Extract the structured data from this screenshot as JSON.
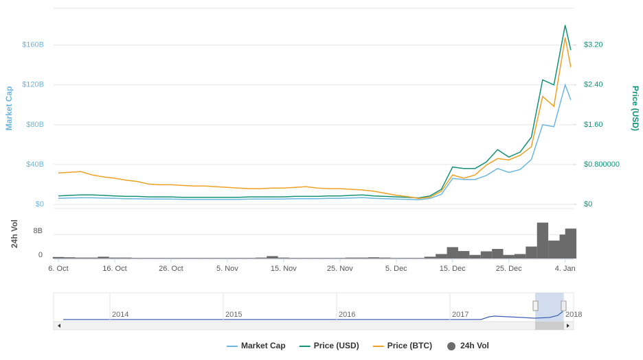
{
  "chart_data": {
    "type": "line",
    "x": [
      0,
      2,
      4,
      6,
      8,
      10,
      12,
      14,
      16,
      18,
      20,
      22,
      24,
      26,
      28,
      30,
      32,
      34,
      36,
      38,
      40,
      42,
      44,
      46,
      48,
      50,
      52,
      54,
      56,
      58,
      60,
      62,
      64,
      66,
      68,
      70,
      72,
      74,
      76,
      78,
      80,
      82,
      84,
      86,
      88,
      90,
      91
    ],
    "xlim": [
      -0.85,
      91.5
    ],
    "xticks": [
      {
        "value": 0,
        "label": "6. Oct"
      },
      {
        "value": 10,
        "label": "16. Oct"
      },
      {
        "value": 20,
        "label": "26. Oct"
      },
      {
        "value": 30,
        "label": "5. Nov"
      },
      {
        "value": 40,
        "label": "15. Nov"
      },
      {
        "value": 50,
        "label": "25. Nov"
      },
      {
        "value": 60,
        "label": "5. Dec"
      },
      {
        "value": 70,
        "label": "15. Dec"
      },
      {
        "value": 80,
        "label": "25. Dec"
      },
      {
        "value": 90,
        "label": "4. Jan"
      }
    ],
    "ylabel": "Market Cap",
    "ylim": [
      0,
      197
    ],
    "yticks": [
      {
        "value": 0,
        "label": "$0"
      },
      {
        "value": 40,
        "label": "$40B"
      },
      {
        "value": 80,
        "label": "$80B"
      },
      {
        "value": 120,
        "label": "$120B"
      },
      {
        "value": 160,
        "label": "$160B"
      }
    ],
    "y2label": "Price (USD)",
    "y2lim": [
      0,
      3.94
    ],
    "y2ticks": [
      {
        "value": 0,
        "label": "$0"
      },
      {
        "value": 0.8,
        "label": "$0.800000"
      },
      {
        "value": 1.6,
        "label": "$1.60"
      },
      {
        "value": 2.4,
        "label": "$2.40"
      },
      {
        "value": 3.2,
        "label": "$3.20"
      }
    ],
    "y3lim": [
      0,
      0.0003
    ],
    "vollabel": "24h Vol",
    "vollim": [
      0,
      16.5
    ],
    "volticks": [
      {
        "value": 0,
        "label": "0"
      },
      {
        "value": 8,
        "label": "8B"
      }
    ],
    "grid": true,
    "series": [
      {
        "name": "Market Cap",
        "color": "#6cb6e1",
        "axis": "y",
        "values": [
          6,
          6.4,
          6.6,
          6.6,
          6.3,
          6,
          5.7,
          5.6,
          5.3,
          5.3,
          5.3,
          5,
          5,
          5,
          5,
          5,
          5,
          5.3,
          5.3,
          5.3,
          5.3,
          5.7,
          5.7,
          5.7,
          6,
          6,
          6.4,
          6.8,
          6,
          5.7,
          5.3,
          5,
          4.6,
          6,
          10,
          26,
          25,
          25,
          29,
          36,
          32,
          35,
          45,
          80,
          78,
          120,
          105
        ]
      },
      {
        "name": "Price (USD)",
        "color": "#129176",
        "axis": "y2",
        "values": [
          0.17,
          0.18,
          0.19,
          0.19,
          0.18,
          0.17,
          0.16,
          0.16,
          0.15,
          0.15,
          0.15,
          0.14,
          0.14,
          0.14,
          0.14,
          0.14,
          0.14,
          0.15,
          0.15,
          0.15,
          0.15,
          0.16,
          0.16,
          0.16,
          0.17,
          0.17,
          0.18,
          0.19,
          0.17,
          0.16,
          0.15,
          0.14,
          0.13,
          0.17,
          0.3,
          0.75,
          0.72,
          0.72,
          0.85,
          1.1,
          0.95,
          1.05,
          1.35,
          2.5,
          2.4,
          3.6,
          3.1
        ]
      },
      {
        "name": "Price (BTC)",
        "color": "#f0a123",
        "axis": "y3",
        "values": [
          4.8e-05,
          4.9e-05,
          5e-05,
          4.5e-05,
          4.2e-05,
          4e-05,
          3.7e-05,
          3.5e-05,
          3.1e-05,
          3e-05,
          3e-05,
          2.9e-05,
          2.8e-05,
          2.8e-05,
          2.7e-05,
          2.6e-05,
          2.5e-05,
          2.4e-05,
          2.4e-05,
          2.5e-05,
          2.5e-05,
          2.6e-05,
          2.7e-05,
          2.5e-05,
          2.4e-05,
          2.4e-05,
          2.3e-05,
          2.2e-05,
          2e-05,
          1.7e-05,
          1.4e-05,
          1.2e-05,
          9e-06,
          1.1e-05,
          2e-05,
          4.5e-05,
          4e-05,
          4.5e-05,
          6e-05,
          7e-05,
          6.8e-05,
          7.5e-05,
          8.8e-05,
          0.000165,
          0.00015,
          0.000255,
          0.00021
        ]
      },
      {
        "name": "24h Vol",
        "color": "#6b6b6b",
        "axis": "vol",
        "values": [
          0.5,
          0.4,
          0.3,
          0.3,
          0.6,
          0.3,
          0.3,
          0.2,
          0.2,
          0.2,
          0.2,
          0.2,
          0.2,
          0.2,
          0.2,
          0.2,
          0.2,
          0.2,
          0.3,
          0.8,
          0.3,
          0.2,
          0.2,
          0.2,
          0.2,
          0.2,
          0.3,
          0.3,
          0.4,
          0.3,
          0.2,
          0.2,
          0.2,
          0.6,
          1.5,
          3.8,
          2.5,
          1.2,
          2.4,
          3.2,
          1.2,
          1.5,
          4,
          12,
          6,
          8,
          10
        ]
      }
    ],
    "navigator_labels": [
      "2014",
      "2015",
      "2016",
      "2017",
      "2018"
    ]
  }
}
